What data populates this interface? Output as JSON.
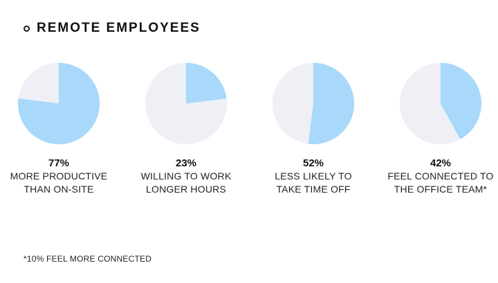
{
  "title": "REMOTE EMPLOYEES",
  "colors": {
    "filled": "#a8d8fa",
    "empty": "#eef0f5"
  },
  "chart_data": {
    "type": "pie",
    "charts": [
      {
        "percent": 77,
        "value_label": "77%",
        "lines": [
          "MORE PRODUCTIVE",
          "THAN ON-SITE"
        ]
      },
      {
        "percent": 23,
        "value_label": "23%",
        "lines": [
          "WILLING TO WORK",
          "LONGER HOURS"
        ]
      },
      {
        "percent": 52,
        "value_label": "52%",
        "lines": [
          "LESS LIKELY TO",
          "TAKE TIME OFF"
        ]
      },
      {
        "percent": 42,
        "value_label": "42%",
        "lines": [
          "FEEL CONNECTED TO",
          "THE OFFICE TEAM*"
        ]
      }
    ]
  },
  "footnote": "*10% FEEL MORE CONNECTED"
}
